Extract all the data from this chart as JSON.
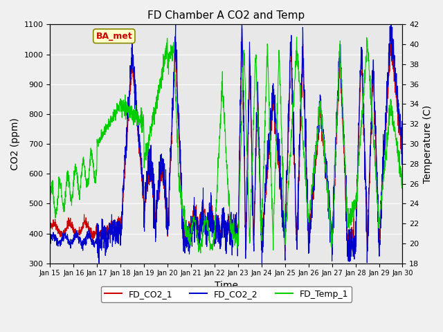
{
  "title": "FD Chamber A CO2 and Temp",
  "xlabel": "Time",
  "ylabel_left": "CO2 (ppm)",
  "ylabel_right": "Temperature (C)",
  "ylim_left": [
    300,
    1100
  ],
  "ylim_right": [
    18,
    42
  ],
  "yticks_left": [
    300,
    400,
    500,
    600,
    700,
    800,
    900,
    1000,
    1100
  ],
  "yticks_right": [
    18,
    20,
    22,
    24,
    26,
    28,
    30,
    32,
    34,
    36,
    38,
    40,
    42
  ],
  "xtick_labels": [
    "Jan 15",
    "Jan 16",
    "Jan 17",
    "Jan 18",
    "Jan 19",
    "Jan 20",
    "Jan 21",
    "Jan 22",
    "Jan 23",
    "Jan 24",
    "Jan 25",
    "Jan 26",
    "Jan 27",
    "Jan 28",
    "Jan 29",
    "Jan 30"
  ],
  "color_co2_1": "#cc0000",
  "color_co2_2": "#0000cc",
  "color_temp": "#00cc00",
  "legend_labels": [
    "FD_CO2_1",
    "FD_CO2_2",
    "FD_Temp_1"
  ],
  "watermark_text": "BA_met",
  "watermark_color": "#cc0000",
  "watermark_bg": "#ffffcc",
  "background_color": "#e8e8e8",
  "grid_color": "#ffffff",
  "seed": 42
}
